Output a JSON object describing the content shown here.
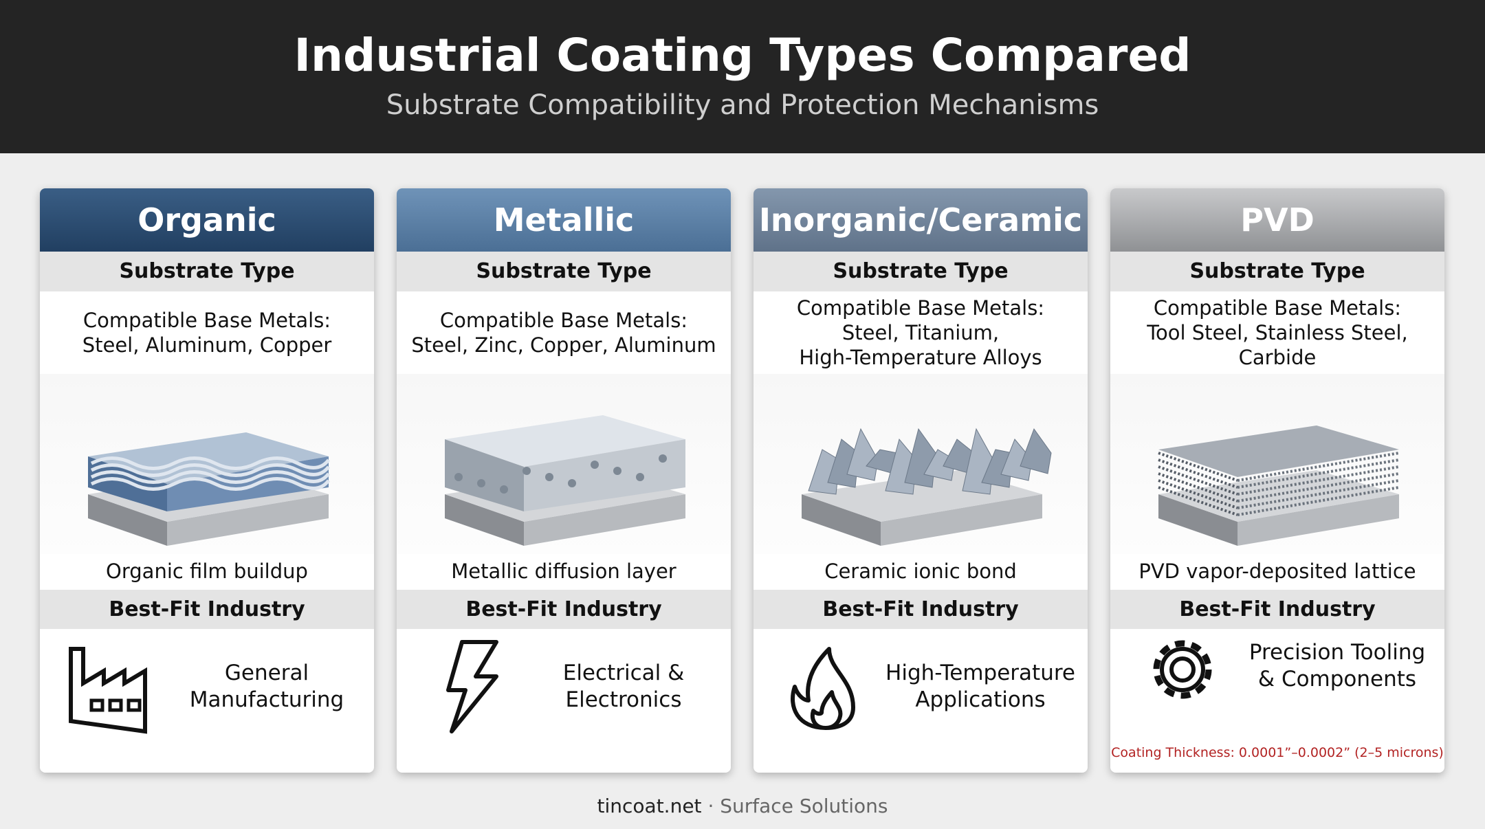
{
  "header": {
    "title": "Industrial Coating Types Compared",
    "subtitle": "Substrate Compatibility and Protection Mechanisms"
  },
  "cards": [
    {
      "title": "Organic",
      "substrate_label": "Substrate Type",
      "metals_label": "Compatible Base Metals:",
      "metals": [
        "Steel, Aluminum, Copper"
      ],
      "caption": "Organic film buildup",
      "industry_label": "Best-Fit Industry",
      "industry": [
        "General",
        "Manufacturing"
      ]
    },
    {
      "title": "Metallic",
      "substrate_label": "Substrate Type",
      "metals_label": "Compatible Base Metals:",
      "metals": [
        "Steel, Zinc, Copper, Aluminum"
      ],
      "caption": "Metallic diffusion layer",
      "industry_label": "Best-Fit Industry",
      "industry": [
        "Electrical &",
        "Electronics"
      ]
    },
    {
      "title": "Inorganic/Ceramic",
      "substrate_label": "Substrate Type",
      "metals_label": "Compatible Base Metals:",
      "metals": [
        "Steel, Titanium,",
        "High-Temperature Alloys"
      ],
      "caption": "Ceramic ionic bond",
      "industry_label": "Best-Fit Industry",
      "industry": [
        "High-Temperature",
        "Applications"
      ]
    },
    {
      "title": "PVD",
      "substrate_label": "Substrate Type",
      "metals_label": "Compatible Base Metals:",
      "metals": [
        "Tool Steel, Stainless Steel, Carbide"
      ],
      "caption": "PVD vapor-deposited lattice",
      "industry_label": "Best-Fit Industry",
      "industry": [
        "Precision Tooling",
        "& Components"
      ],
      "note": "Coating Thickness: 0.0001”–0.0002” (2–5 microns)"
    }
  ],
  "footer": {
    "site": "tincoat.net",
    "separator": "·",
    "tagline": "Surface Solutions"
  }
}
